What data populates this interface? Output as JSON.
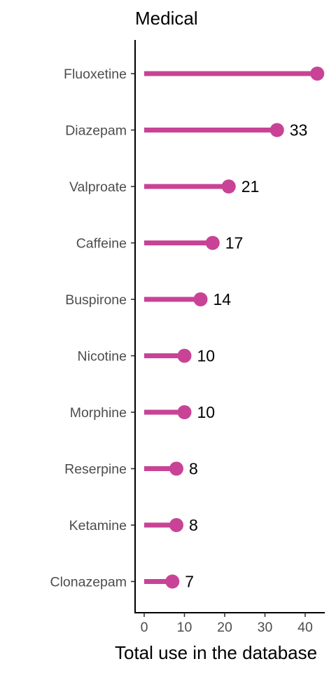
{
  "chart_data": {
    "type": "lollipop",
    "orientation": "horizontal",
    "title": "Medical",
    "xlabel": "Total use in the database",
    "ylabel": "",
    "xlim": [
      -2,
      45.5
    ],
    "xticks": [
      0,
      10,
      20,
      30,
      40
    ],
    "grid": false,
    "legend": "none",
    "color": "#c84396",
    "categories": [
      "Fluoxetine",
      "Diazepam",
      "Valproate",
      "Caffeine",
      "Buspirone",
      "Nicotine",
      "Morphine",
      "Reserpine",
      "Ketamine",
      "Clonazepam"
    ],
    "values": [
      43,
      33,
      21,
      17,
      14,
      10,
      10,
      8,
      8,
      7
    ],
    "value_labels": [
      "",
      "33",
      "21",
      "17",
      "14",
      "10",
      "10",
      "8",
      "8",
      "7"
    ]
  }
}
